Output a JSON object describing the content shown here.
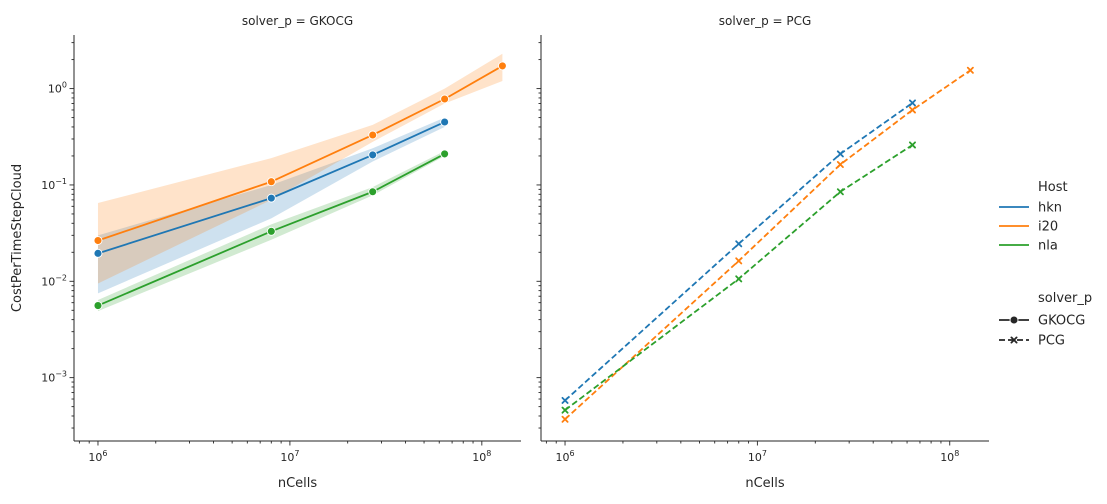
{
  "chart_data": {
    "type": "line",
    "x_scale": "log",
    "y_scale": "log",
    "xlim": [
      750000,
      160000000
    ],
    "ylim": [
      0.00022,
      3.6
    ],
    "xlabel": "nCells",
    "ylabel": "CostPerTimeStepCloud",
    "x_ticks": [
      {
        "value": 1000000,
        "base": "10",
        "exp": "6"
      },
      {
        "value": 10000000,
        "base": "10",
        "exp": "7"
      },
      {
        "value": 100000000,
        "base": "10",
        "exp": "8"
      }
    ],
    "y_ticks": [
      {
        "value": 0.001,
        "base": "10",
        "exp": "−3"
      },
      {
        "value": 0.01,
        "base": "10",
        "exp": "−2"
      },
      {
        "value": 0.1,
        "base": "10",
        "exp": "−1"
      },
      {
        "value": 1,
        "base": "10",
        "exp": "0"
      }
    ],
    "panels": [
      {
        "title": "solver_p = GKOCG",
        "marker": "circle",
        "dash": false,
        "series": [
          {
            "host": "hkn",
            "color": "#1f77b4",
            "x": [
              1000000,
              8000000,
              27000000,
              64000000
            ],
            "y": [
              0.0195,
              0.073,
              0.205,
              0.45
            ],
            "lo": [
              0.0075,
              0.045,
              0.175,
              0.4
            ],
            "hi": [
              0.03,
              0.1,
              0.24,
              0.5
            ]
          },
          {
            "host": "i20",
            "color": "#ff7f0e",
            "x": [
              1000000,
              8000000,
              27000000,
              64000000,
              128000000
            ],
            "y": [
              0.0265,
              0.108,
              0.33,
              0.78,
              1.72
            ],
            "lo": [
              0.0095,
              0.07,
              0.28,
              0.7,
              1.2
            ],
            "hi": [
              0.065,
              0.19,
              0.42,
              1.0,
              2.3
            ]
          },
          {
            "host": "nla",
            "color": "#2ca02c",
            "x": [
              1000000,
              8000000,
              27000000,
              64000000
            ],
            "y": [
              0.0056,
              0.033,
              0.085,
              0.21
            ],
            "lo": [
              0.0049,
              0.027,
              0.078,
              0.2
            ],
            "hi": [
              0.0064,
              0.039,
              0.095,
              0.225
            ]
          }
        ]
      },
      {
        "title": "solver_p = PCG",
        "marker": "x",
        "dash": true,
        "series": [
          {
            "host": "hkn",
            "color": "#1f77b4",
            "x": [
              1000000,
              8000000,
              27000000,
              64000000
            ],
            "y": [
              0.00058,
              0.0245,
              0.21,
              0.71
            ]
          },
          {
            "host": "i20",
            "color": "#ff7f0e",
            "x": [
              1000000,
              8000000,
              27000000,
              64000000,
              128000000
            ],
            "y": [
              0.00037,
              0.0163,
              0.163,
              0.6,
              1.55
            ]
          },
          {
            "host": "nla",
            "color": "#2ca02c",
            "x": [
              1000000,
              8000000,
              27000000,
              64000000
            ],
            "y": [
              0.00046,
              0.0106,
              0.085,
              0.26
            ]
          }
        ]
      }
    ],
    "legend": {
      "placement": "right",
      "hue_title": "Host",
      "hue_entries": [
        {
          "label": "hkn",
          "color": "#1f77b4"
        },
        {
          "label": "i20",
          "color": "#ff7f0e"
        },
        {
          "label": "nla",
          "color": "#2ca02c"
        }
      ],
      "style_title": "solver_p",
      "style_entries": [
        {
          "label": "GKOCG",
          "marker": "circle",
          "dash": false
        },
        {
          "label": "PCG",
          "marker": "x",
          "dash": true
        }
      ]
    }
  }
}
